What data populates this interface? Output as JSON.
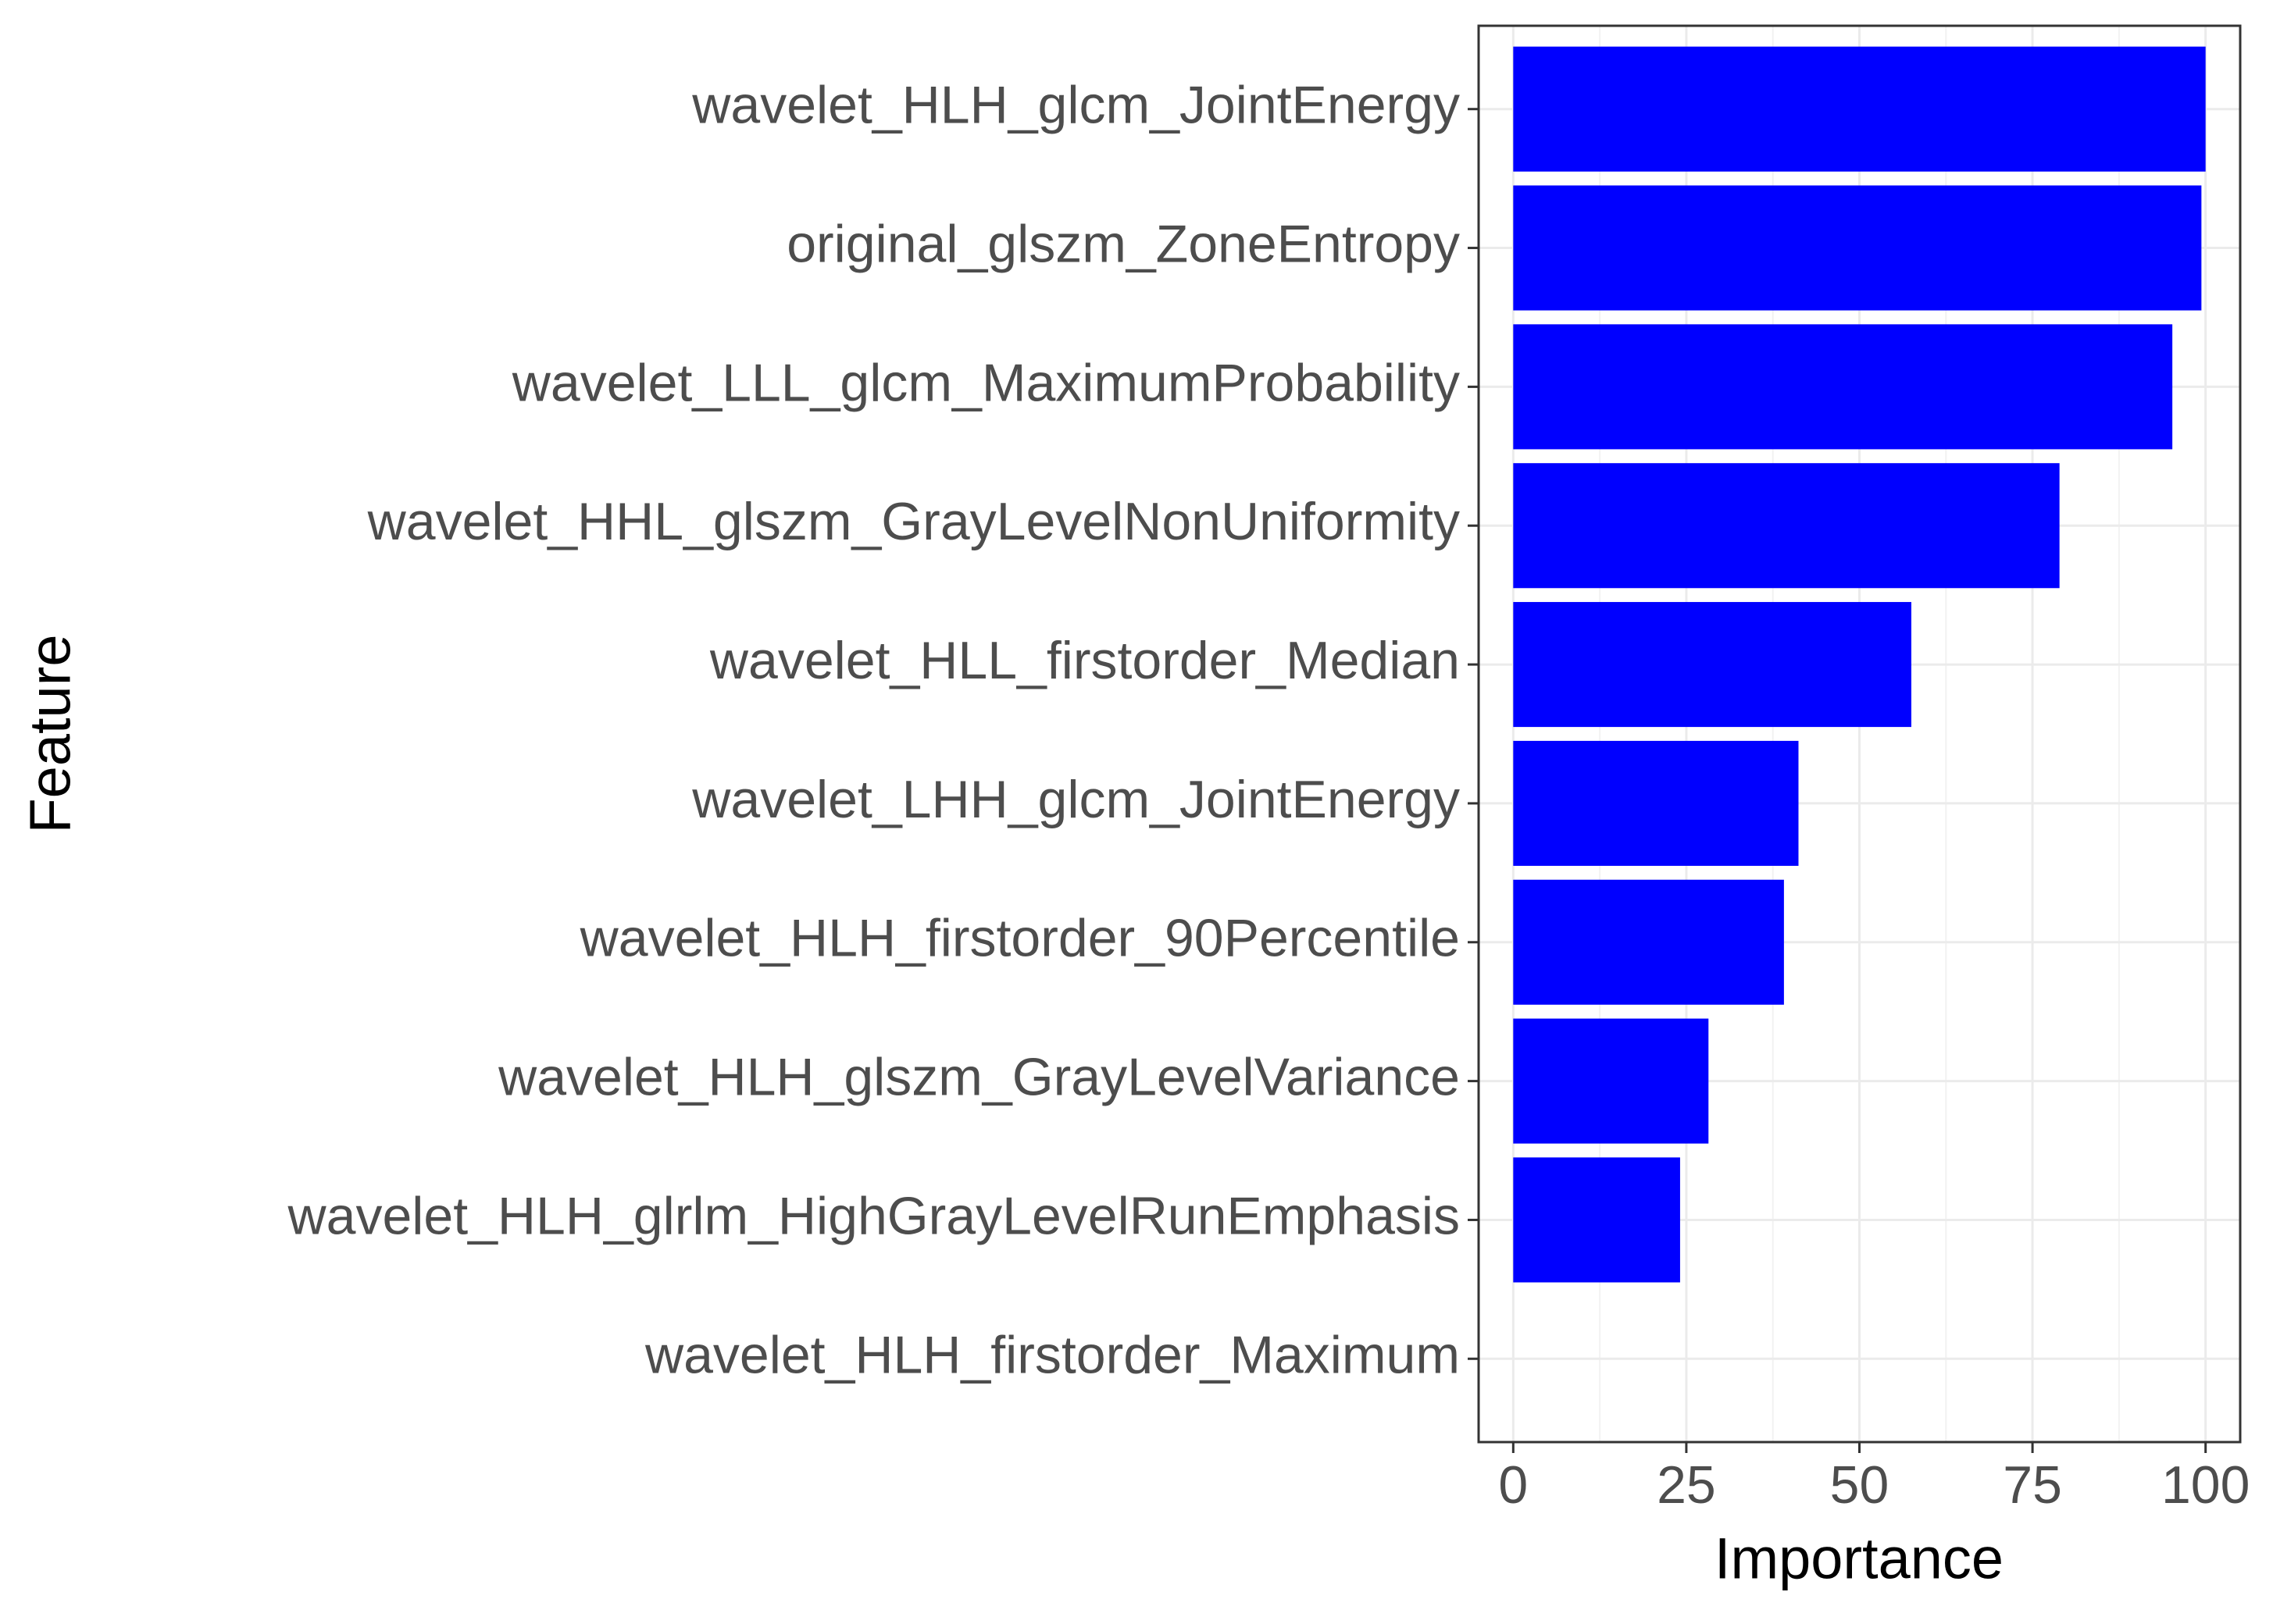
{
  "chart_data": {
    "type": "barh",
    "categories": [
      "wavelet_HLH_glcm_JointEnergy",
      "original_glszm_ZoneEntropy",
      "wavelet_LLL_glcm_MaximumProbability",
      "wavelet_HHL_glszm_GrayLevelNonUniformity",
      "wavelet_HLL_firstorder_Median",
      "wavelet_LHH_glcm_JointEnergy",
      "wavelet_HLH_firstorder_90Percentile",
      "wavelet_HLH_glszm_GrayLevelVariance",
      "wavelet_HLH_glrlm_HighGrayLevelRunEmphasis",
      "wavelet_HLH_firstorder_Maximum"
    ],
    "values": [
      100,
      99.4,
      95.2,
      78.9,
      57.5,
      41.2,
      39.1,
      28.2,
      24.1,
      0
    ],
    "color": "#0000ff",
    "xlabel": "Importance",
    "ylabel": "Feature",
    "xlim": [
      -5,
      105
    ],
    "xticks": [
      0,
      25,
      50,
      75,
      100
    ],
    "grid": true
  }
}
